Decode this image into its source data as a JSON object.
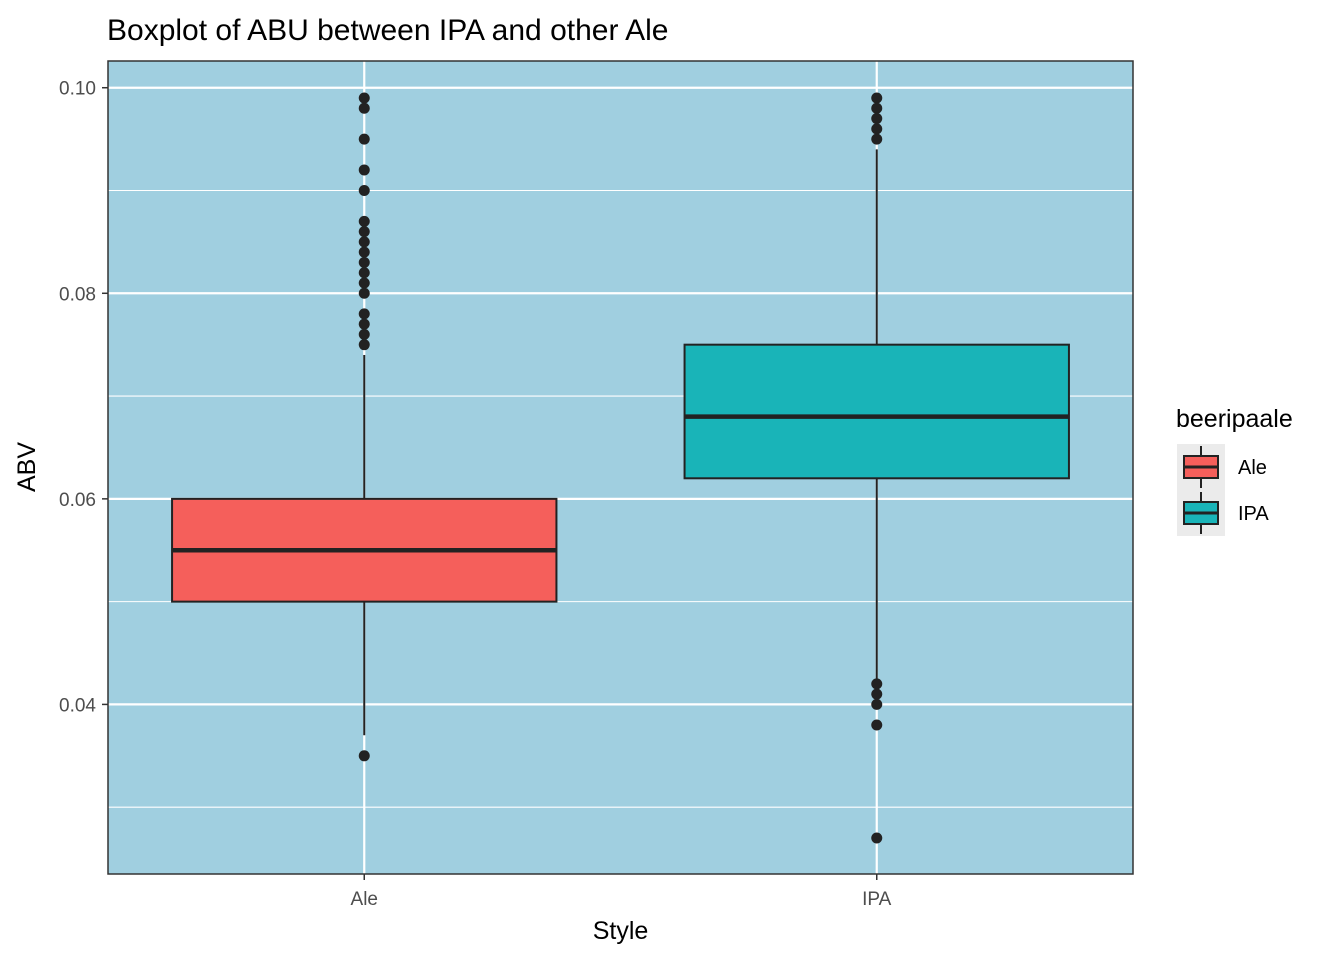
{
  "chart_data": {
    "type": "boxplot",
    "title": "Boxplot of ABU between IPA and other Ale",
    "xlabel": "Style",
    "ylabel": "ABV",
    "categories": [
      "Ale",
      "IPA"
    ],
    "ylim": [
      0.0235,
      0.1026
    ],
    "yticks": [
      0.04,
      0.06,
      0.08,
      0.1
    ],
    "ytick_labels": [
      "0.04",
      "0.06",
      "0.08",
      "0.10"
    ],
    "y_minor_ticks": [
      0.03,
      0.05,
      0.07,
      0.09
    ],
    "grid": true,
    "panel_background": "#a0cfe0",
    "legend": {
      "title": "beeripaale",
      "position": "right",
      "entries": [
        "Ale",
        "IPA"
      ]
    },
    "series": [
      {
        "category": "Ale",
        "color": "#f55f5b",
        "whisker_low": 0.037,
        "q1": 0.05,
        "median": 0.055,
        "q3": 0.06,
        "whisker_high": 0.074,
        "outliers": [
          0.035,
          0.075,
          0.076,
          0.077,
          0.078,
          0.08,
          0.081,
          0.082,
          0.083,
          0.084,
          0.085,
          0.086,
          0.087,
          0.09,
          0.092,
          0.095,
          0.098,
          0.099
        ]
      },
      {
        "category": "IPA",
        "color": "#19b4b8",
        "whisker_low": 0.0425,
        "q1": 0.062,
        "median": 0.068,
        "q3": 0.075,
        "whisker_high": 0.094,
        "outliers": [
          0.027,
          0.038,
          0.04,
          0.041,
          0.042,
          0.095,
          0.096,
          0.097,
          0.098,
          0.099
        ]
      }
    ]
  }
}
